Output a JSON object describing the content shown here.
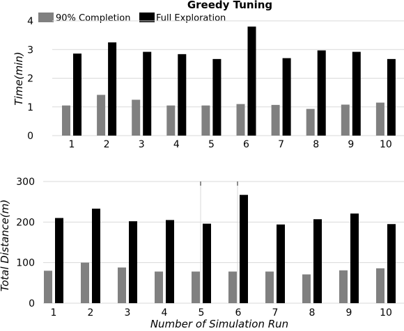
{
  "chart_data": [
    {
      "type": "bar",
      "title": "Greedy Tuning",
      "xlabel": "",
      "ylabel": "Time(min)",
      "categories": [
        "1",
        "2",
        "3",
        "4",
        "5",
        "6",
        "7",
        "8",
        "9",
        "10"
      ],
      "ylim": [
        0,
        4
      ],
      "yticks": [
        "0",
        "1",
        "2",
        "3",
        "4"
      ],
      "grid": true,
      "legend_position": "top-left",
      "series": [
        {
          "name": "90% Completion",
          "color": "#808080",
          "values": [
            1.05,
            1.42,
            1.25,
            1.05,
            1.05,
            1.1,
            1.07,
            0.93,
            1.08,
            1.15
          ]
        },
        {
          "name": "Full Exploration",
          "color": "#000000",
          "values": [
            2.86,
            3.25,
            2.92,
            2.84,
            2.67,
            3.8,
            2.7,
            2.97,
            2.92,
            2.67
          ]
        }
      ]
    },
    {
      "type": "bar",
      "title": "",
      "xlabel": "Number of Simulation Run",
      "ylabel": "Total Distance(m)",
      "categories": [
        "1",
        "2",
        "3",
        "4",
        "5",
        "6",
        "7",
        "8",
        "9",
        "10"
      ],
      "ylim": [
        0,
        300
      ],
      "yticks": [
        "0",
        "100",
        "200",
        "300"
      ],
      "grid": true,
      "series": [
        {
          "name": "90% Completion",
          "color": "#808080",
          "values": [
            80,
            100,
            88,
            78,
            78,
            78,
            78,
            71,
            81,
            86
          ]
        },
        {
          "name": "Full Exploration",
          "color": "#000000",
          "values": [
            210,
            233,
            202,
            205,
            196,
            267,
            194,
            207,
            221,
            195
          ]
        }
      ]
    }
  ]
}
